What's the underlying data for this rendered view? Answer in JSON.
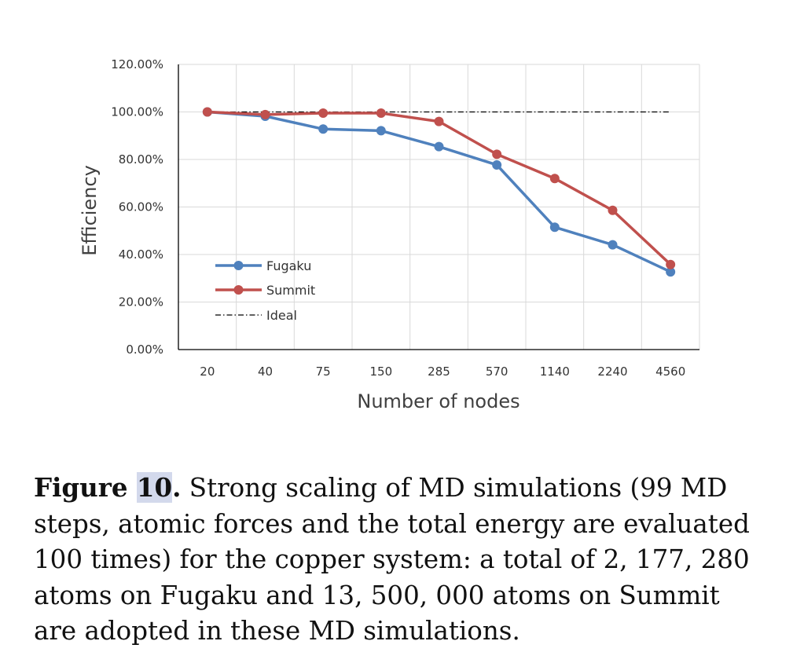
{
  "chart_data": {
    "type": "line",
    "title": "",
    "xlabel": "Number of nodes",
    "ylabel": "Efficiency",
    "categories": [
      "20",
      "40",
      "75",
      "150",
      "285",
      "570",
      "1140",
      "2240",
      "4560"
    ],
    "y_ticks": [
      "0.00%",
      "20.00%",
      "40.00%",
      "60.00%",
      "80.00%",
      "100.00%",
      "120.00%"
    ],
    "ylim": [
      0,
      120
    ],
    "grid": true,
    "legend_position": "bottom-left",
    "series": [
      {
        "name": "Fugaku",
        "color": "#4f81bd",
        "style": "solid-markers",
        "values": [
          100.0,
          98.2,
          92.8,
          92.1,
          85.4,
          77.7,
          51.5,
          44.1,
          32.7
        ]
      },
      {
        "name": "Summit",
        "color": "#c0504d",
        "style": "solid-markers",
        "values": [
          100.0,
          98.9,
          99.5,
          99.5,
          96.0,
          82.2,
          72.0,
          58.6,
          35.8
        ]
      },
      {
        "name": "Ideal",
        "color": "#000000",
        "style": "dash-dot",
        "values": [
          100,
          100,
          100,
          100,
          100,
          100,
          100,
          100,
          100
        ]
      }
    ]
  },
  "caption": {
    "label": "Figure",
    "number": "10",
    "text": " Strong scaling of MD simulations (99 MD steps, atomic forces and the total energy are evaluated 100 times) for the copper system: a total of 2, 177, 280 atoms on Fugaku and 13, 500, 000 atoms on Summit are adopted in these MD simulations."
  }
}
